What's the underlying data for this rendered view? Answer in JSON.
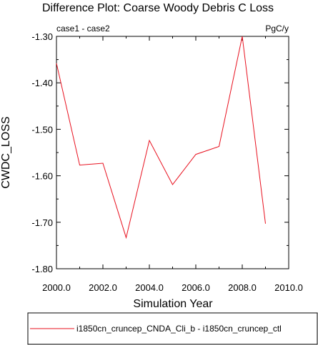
{
  "chart_data": {
    "type": "line",
    "title": "Difference Plot: Coarse Woody Debris C Loss",
    "left_string": "case1 - case2",
    "right_string": "PgC/y",
    "xlabel": "Simulation Year",
    "ylabel": "CWDC_LOSS",
    "xlim": [
      2000,
      2010
    ],
    "ylim": [
      -1.8,
      -1.3
    ],
    "x_ticks": [
      2000,
      2002,
      2004,
      2006,
      2008,
      2010
    ],
    "x_tick_labels": [
      "2000.0",
      "2002.0",
      "2004.0",
      "2006.0",
      "2008.0",
      "2010.0"
    ],
    "y_ticks": [
      -1.3,
      -1.4,
      -1.5,
      -1.6,
      -1.7,
      -1.8
    ],
    "y_tick_labels": [
      "-1.30",
      "-1.40",
      "-1.50",
      "-1.60",
      "-1.70",
      "-1.80"
    ],
    "grid": false,
    "legend_position": "bottom",
    "series": [
      {
        "name": "i1850cn_cruncep_CNDA_Cli_b - i1850cn_cruncep_ctl",
        "color": "#e8101e",
        "x": [
          2000,
          2001,
          2002,
          2003,
          2004,
          2005,
          2006,
          2007,
          2008,
          2009
        ],
        "values": [
          -1.358,
          -1.577,
          -1.573,
          -1.733,
          -1.524,
          -1.619,
          -1.554,
          -1.537,
          -1.3,
          -1.703
        ]
      }
    ]
  }
}
